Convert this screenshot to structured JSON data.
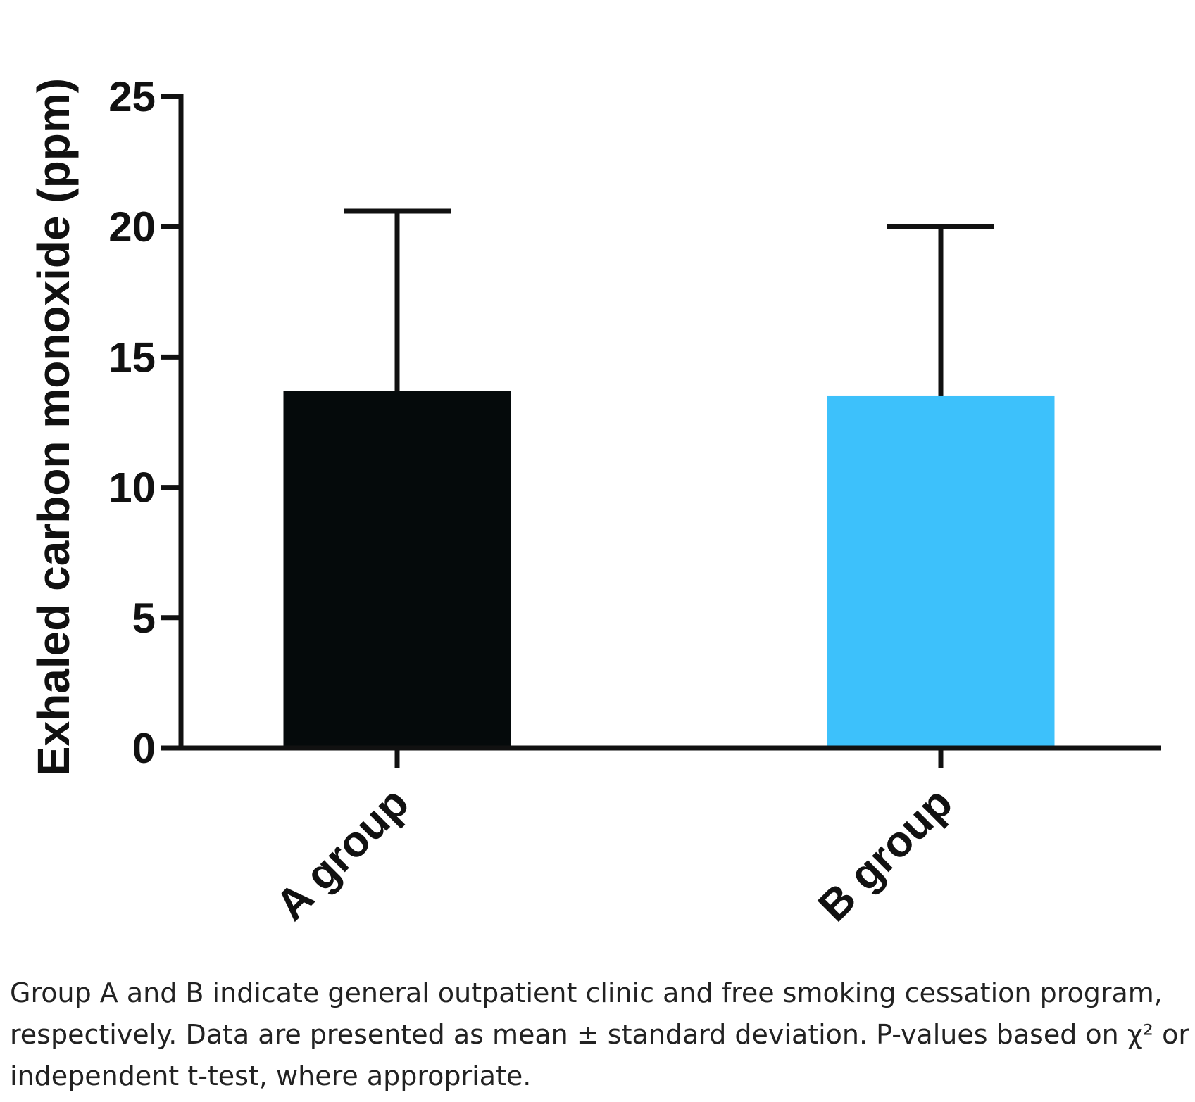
{
  "chart_data": {
    "type": "bar",
    "y_label": "Exhaled carbon monoxide (ppm)",
    "categories": [
      "A group",
      "B group"
    ],
    "values": [
      13.7,
      13.5
    ],
    "errors": [
      6.9,
      6.5
    ],
    "colors": [
      "#050a0b",
      "#3dc1fb"
    ],
    "ylim": [
      0,
      25
    ],
    "yticks": [
      0,
      5,
      10,
      15,
      20,
      25
    ],
    "grid": false
  },
  "caption": "Group A and B indicate general outpatient clinic and free smoking cessation program, respectively. Data are presented as mean ± standard deviation. P-values based on χ² or independent t-test, where appropriate."
}
